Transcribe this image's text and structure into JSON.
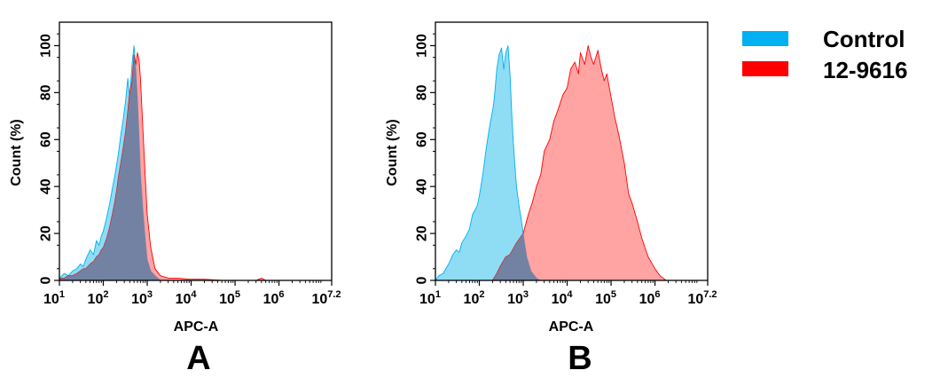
{
  "legend": {
    "items": [
      {
        "label": "Control",
        "color": "#00b0f0"
      },
      {
        "label": "12-9616",
        "color": "#ff0000"
      }
    ]
  },
  "chart_data": [
    {
      "type": "area",
      "panel_label": "A",
      "xlabel": "APC-A",
      "ylabel": "Count  (%)",
      "x_scale": "log10",
      "xlim": [
        10,
        15848932
      ],
      "ylim": [
        0,
        110
      ],
      "x_tick_labels": [
        {
          "base": "10",
          "exp": "1"
        },
        {
          "base": "10",
          "exp": "2"
        },
        {
          "base": "10",
          "exp": "3"
        },
        {
          "base": "10",
          "exp": "4"
        },
        {
          "base": "10",
          "exp": "5"
        },
        {
          "base": "10",
          "exp": "6"
        },
        {
          "base": "10",
          "exp": "7.2"
        }
      ],
      "y_ticks": [
        0,
        20,
        40,
        60,
        80,
        100
      ],
      "series": [
        {
          "name": "Control",
          "color": "#00b0f0",
          "fill": "#8fdcf5",
          "points": [
            [
              10,
              1
            ],
            [
              13,
              3
            ],
            [
              16,
              2
            ],
            [
              20,
              4
            ],
            [
              25,
              5
            ],
            [
              30,
              7
            ],
            [
              35,
              6
            ],
            [
              40,
              9
            ],
            [
              50,
              13
            ],
            [
              60,
              11
            ],
            [
              70,
              17
            ],
            [
              80,
              15
            ],
            [
              90,
              19
            ],
            [
              100,
              21
            ],
            [
              120,
              27
            ],
            [
              140,
              33
            ],
            [
              160,
              39
            ],
            [
              180,
              44
            ],
            [
              200,
              49
            ],
            [
              220,
              54
            ],
            [
              250,
              62
            ],
            [
              280,
              68
            ],
            [
              320,
              76
            ],
            [
              360,
              86
            ],
            [
              400,
              78
            ],
            [
              450,
              92
            ],
            [
              500,
              100
            ],
            [
              550,
              90
            ],
            [
              600,
              78
            ],
            [
              650,
              62
            ],
            [
              700,
              46
            ],
            [
              800,
              30
            ],
            [
              900,
              18
            ],
            [
              1000,
              9
            ],
            [
              1200,
              4
            ],
            [
              1500,
              2
            ],
            [
              2000,
              0
            ]
          ]
        },
        {
          "name": "12-9616",
          "color": "#ff0000",
          "fill": "#ff8080",
          "points": [
            [
              10,
              1
            ],
            [
              13,
              1
            ],
            [
              16,
              2
            ],
            [
              20,
              2
            ],
            [
              25,
              3
            ],
            [
              30,
              4
            ],
            [
              35,
              5
            ],
            [
              40,
              5
            ],
            [
              50,
              7
            ],
            [
              60,
              8
            ],
            [
              70,
              10
            ],
            [
              80,
              11
            ],
            [
              90,
              13
            ],
            [
              100,
              14
            ],
            [
              120,
              18
            ],
            [
              140,
              23
            ],
            [
              160,
              28
            ],
            [
              180,
              33
            ],
            [
              200,
              38
            ],
            [
              220,
              44
            ],
            [
              250,
              50
            ],
            [
              280,
              56
            ],
            [
              320,
              63
            ],
            [
              360,
              72
            ],
            [
              400,
              80
            ],
            [
              450,
              85
            ],
            [
              500,
              96
            ],
            [
              550,
              92
            ],
            [
              600,
              97
            ],
            [
              650,
              94
            ],
            [
              700,
              86
            ],
            [
              800,
              64
            ],
            [
              900,
              44
            ],
            [
              1000,
              28
            ],
            [
              1200,
              14
            ],
            [
              1500,
              5
            ],
            [
              2000,
              2
            ],
            [
              3000,
              1
            ],
            [
              5000,
              1
            ],
            [
              9000,
              0.5
            ],
            [
              20000,
              0.5
            ],
            [
              50000,
              0
            ],
            [
              300000,
              0
            ],
            [
              400000,
              1
            ],
            [
              500000,
              0
            ],
            [
              15848932,
              0
            ]
          ]
        }
      ]
    },
    {
      "type": "area",
      "panel_label": "B",
      "xlabel": "APC-A",
      "ylabel": "Count  (%)",
      "x_scale": "log10",
      "xlim": [
        10,
        15848932
      ],
      "ylim": [
        0,
        110
      ],
      "x_tick_labels": [
        {
          "base": "10",
          "exp": "1"
        },
        {
          "base": "10",
          "exp": "2"
        },
        {
          "base": "10",
          "exp": "3"
        },
        {
          "base": "10",
          "exp": "4"
        },
        {
          "base": "10",
          "exp": "5"
        },
        {
          "base": "10",
          "exp": "6"
        },
        {
          "base": "10",
          "exp": "7.2"
        }
      ],
      "y_ticks": [
        0,
        20,
        40,
        60,
        80,
        100
      ],
      "series": [
        {
          "name": "Control",
          "color": "#00b0f0",
          "fill": "#8fdcf5",
          "points": [
            [
              10,
              0
            ],
            [
              12,
              2
            ],
            [
              15,
              3
            ],
            [
              20,
              7
            ],
            [
              25,
              11
            ],
            [
              30,
              13
            ],
            [
              35,
              12
            ],
            [
              40,
              16
            ],
            [
              50,
              19
            ],
            [
              60,
              22
            ],
            [
              70,
              28
            ],
            [
              80,
              30
            ],
            [
              90,
              32
            ],
            [
              100,
              36
            ],
            [
              120,
              45
            ],
            [
              140,
              55
            ],
            [
              160,
              62
            ],
            [
              180,
              68
            ],
            [
              200,
              72
            ],
            [
              220,
              78
            ],
            [
              250,
              90
            ],
            [
              280,
              96
            ],
            [
              320,
              99
            ],
            [
              360,
              90
            ],
            [
              400,
              97
            ],
            [
              450,
              100
            ],
            [
              500,
              88
            ],
            [
              550,
              70
            ],
            [
              600,
              58
            ],
            [
              650,
              48
            ],
            [
              700,
              40
            ],
            [
              800,
              32
            ],
            [
              900,
              26
            ],
            [
              1000,
              20
            ],
            [
              1200,
              10
            ],
            [
              1500,
              4
            ],
            [
              2000,
              1
            ],
            [
              2500,
              0
            ]
          ]
        },
        {
          "name": "12-9616",
          "color": "#ff0000",
          "fill": "#ff8080",
          "points": [
            [
              200,
              0
            ],
            [
              250,
              3
            ],
            [
              300,
              6
            ],
            [
              400,
              10
            ],
            [
              500,
              11
            ],
            [
              700,
              16
            ],
            [
              1000,
              20
            ],
            [
              1300,
              28
            ],
            [
              1600,
              33
            ],
            [
              2000,
              40
            ],
            [
              2500,
              45
            ],
            [
              3000,
              55
            ],
            [
              4000,
              60
            ],
            [
              5000,
              68
            ],
            [
              6000,
              72
            ],
            [
              8000,
              79
            ],
            [
              10000,
              82
            ],
            [
              12000,
              90
            ],
            [
              15000,
              93
            ],
            [
              18000,
              88
            ],
            [
              20000,
              97
            ],
            [
              25000,
              92
            ],
            [
              30000,
              100
            ],
            [
              35000,
              95
            ],
            [
              40000,
              92
            ],
            [
              50000,
              98
            ],
            [
              60000,
              90
            ],
            [
              70000,
              85
            ],
            [
              80000,
              88
            ],
            [
              100000,
              78
            ],
            [
              120000,
              70
            ],
            [
              150000,
              62
            ],
            [
              200000,
              50
            ],
            [
              250000,
              37
            ],
            [
              300000,
              33
            ],
            [
              400000,
              25
            ],
            [
              500000,
              18
            ],
            [
              700000,
              10
            ],
            [
              1000000,
              5
            ],
            [
              1300000,
              2
            ],
            [
              1800000,
              0
            ]
          ]
        }
      ]
    }
  ]
}
